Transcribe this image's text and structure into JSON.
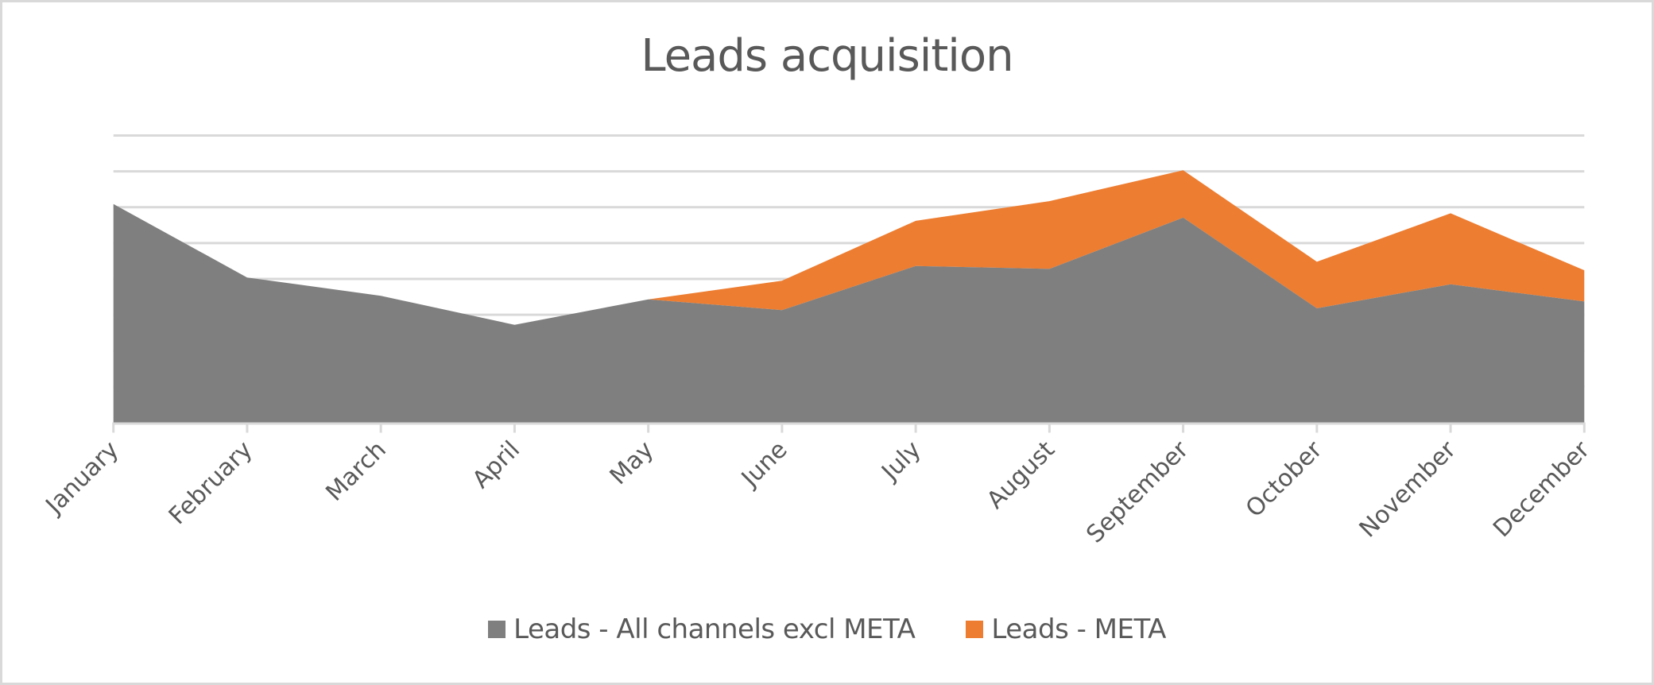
{
  "chart_data": {
    "type": "area",
    "stacked": true,
    "title": "Leads acquisition",
    "xlabel": "",
    "ylabel": "",
    "categories": [
      "January",
      "February",
      "March",
      "April",
      "May",
      "June",
      "July",
      "August",
      "September",
      "October",
      "November",
      "December"
    ],
    "series": [
      {
        "name": "Leads - All channels excl META",
        "color": "#7F7F7F",
        "values": [
          6.09,
          4.04,
          3.53,
          2.72,
          3.43,
          3.13,
          4.36,
          4.28,
          5.71,
          3.18,
          3.85,
          3.37
        ]
      },
      {
        "name": "Leads - META",
        "color": "#ED7D31",
        "values": [
          0,
          0,
          0,
          0,
          0,
          0.82,
          1.26,
          1.89,
          1.32,
          1.3,
          1.98,
          0.87
        ]
      }
    ],
    "ylim": [
      0,
      8
    ],
    "y_gridlines": 8,
    "y_axis_labels_visible": false,
    "y_units_note": "relative gridline units (no y-axis tick labels shown)",
    "grid": true,
    "legend_position": "bottom",
    "xtick_rotation": -45
  },
  "colors": {
    "text": "#595959",
    "grid": "#D9D9D9",
    "border": "#D9D9D9"
  }
}
